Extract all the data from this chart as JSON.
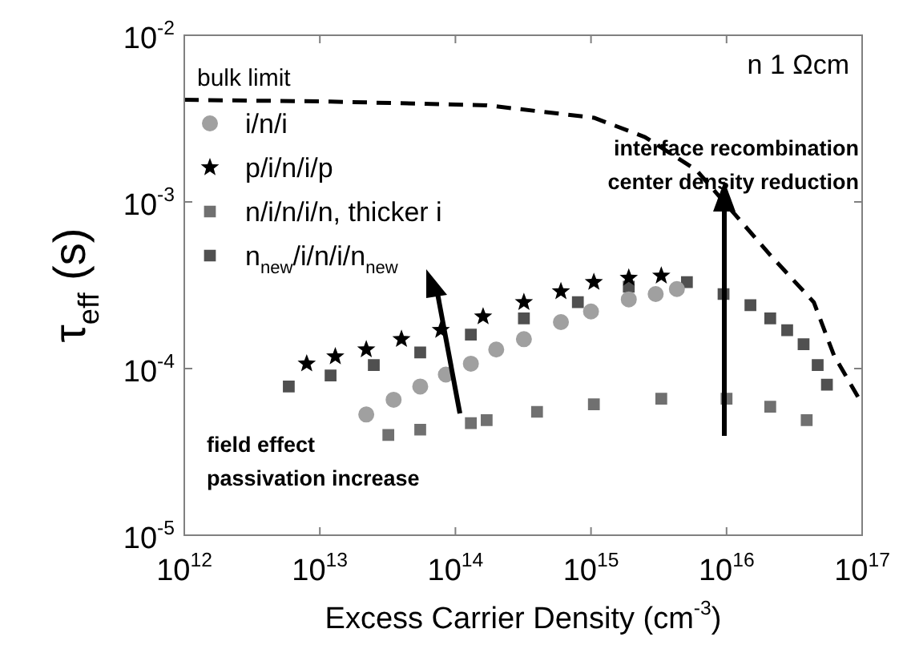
{
  "chart_data": {
    "type": "scatter",
    "xlabel": "Excess Carrier Density (cm$^{-3}$)",
    "ylabel": "τ$_{eff}$ (s)",
    "log": "xy",
    "legend": "top left",
    "grid": false,
    "xlim": [
      1000000000000.0,
      1e+17
    ],
    "ylim": [
      1e-05,
      0.01
    ],
    "xticks": [
      {
        "value": 1000000000000.0,
        "label": "10$^{12}$"
      },
      {
        "value": 10000000000000.0,
        "label": "10$^{13}$"
      },
      {
        "value": 100000000000000.0,
        "label": "10$^{14}$"
      },
      {
        "value": 1000000000000000.0,
        "label": "10$^{15}$"
      },
      {
        "value": 1e+16,
        "label": "10$^{16}$"
      },
      {
        "value": 1e+17,
        "label": "10$^{17}$"
      }
    ],
    "yticks": [
      {
        "value": 1e-05,
        "label": "10$^{-5}$"
      },
      {
        "value": 0.0001,
        "label": "10$^{-4}$"
      },
      {
        "value": 0.001,
        "label": "10$^{-3}$"
      },
      {
        "value": 0.01,
        "label": "10$^{-2}$"
      }
    ],
    "series": [
      {
        "name": "bulk limit",
        "type": "line",
        "line_style": "dashed",
        "marker": "none",
        "color": "#000000",
        "x": [
          1000000000000.0,
          12000000000000.0,
          170000000000000.0,
          1050000000000000.0,
          2500000000000000.0,
          6000000000000000.0,
          2.1e+16,
          4.4e+16,
          6.2e+16,
          9.8e+16
        ],
        "values": [
          0.0041,
          0.004,
          0.0038,
          0.0032,
          0.00245,
          0.00155,
          0.00048,
          0.00025,
          0.00012,
          6.3e-05
        ]
      },
      {
        "name": "i/n/i",
        "marker": "circle",
        "color": "#a0a0a0",
        "x": [
          22000000000000.0,
          35000000000000.0,
          55000000000000.0,
          85000000000000.0,
          130000000000000.0,
          200000000000000.0,
          320000000000000.0,
          600000000000000.0,
          1000000000000000.0,
          1900000000000000.0,
          3000000000000000.0,
          4300000000000000.0
        ],
        "values": [
          5.3e-05,
          6.5e-05,
          7.8e-05,
          9.2e-05,
          0.000107,
          0.00013,
          0.00015,
          0.00019,
          0.00022,
          0.00026,
          0.00028,
          0.0003
        ]
      },
      {
        "name": "p/i/n/i/p",
        "marker": "star",
        "color": "#000000",
        "x": [
          8000000000000.0,
          13000000000000.0,
          22000000000000.0,
          40000000000000.0,
          78000000000000.0,
          160000000000000.0,
          320000000000000.0,
          600000000000000.0,
          1050000000000000.0,
          1900000000000000.0,
          3300000000000000.0
        ],
        "values": [
          0.000107,
          0.000118,
          0.00013,
          0.00015,
          0.00017,
          0.000205,
          0.00025,
          0.00029,
          0.00033,
          0.00035,
          0.00036
        ]
      },
      {
        "name": "n/i/n/i/n, thicker i",
        "marker": "square",
        "color": "#707070",
        "x": [
          32000000000000.0,
          55000000000000.0,
          130000000000000.0,
          170000000000000.0,
          400000000000000.0,
          1050000000000000.0,
          3300000000000000.0,
          1e+16,
          2.1e+16,
          3.9e+16
        ],
        "values": [
          4e-05,
          4.3e-05,
          4.7e-05,
          4.9e-05,
          5.5e-05,
          6.1e-05,
          6.6e-05,
          6.6e-05,
          5.9e-05,
          4.9e-05
        ]
      },
      {
        "name": "n$_{new}$/i/n/i/n$_{new}$",
        "marker": "square",
        "color": "#505050",
        "x": [
          5900000000000.0,
          12000000000000.0,
          25000000000000.0,
          55000000000000.0,
          130000000000000.0,
          320000000000000.0,
          800000000000000.0,
          1900000000000000.0,
          5100000000000000.0,
          9500000000000000.0,
          1.5e+16,
          2.1e+16,
          2.8e+16,
          3.7e+16,
          4.7e+16,
          5.5e+16
        ],
        "values": [
          7.8e-05,
          9.1e-05,
          0.000105,
          0.000125,
          0.00016,
          0.0002,
          0.00025,
          0.00031,
          0.00033,
          0.00028,
          0.00024,
          0.0002,
          0.00017,
          0.00014,
          0.000105,
          8e-05
        ]
      }
    ],
    "annotations": [
      "n 1 Ωcm",
      "interface recombination\ncenter density reduction",
      "field effect\npassivation increase"
    ]
  }
}
